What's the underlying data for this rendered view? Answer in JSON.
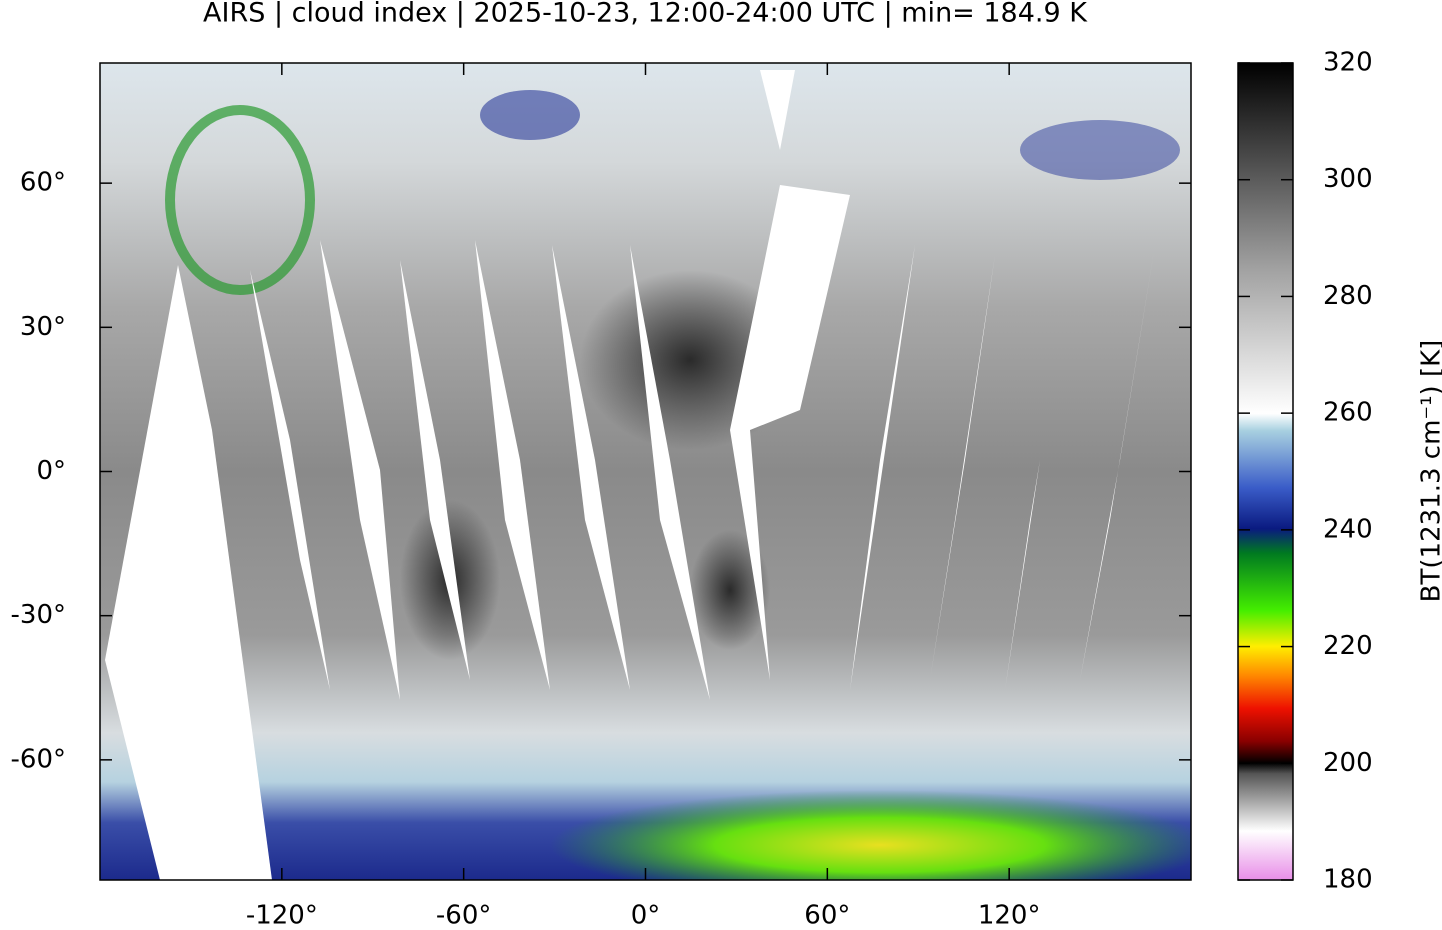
{
  "chart_data": {
    "type": "map",
    "title": "AIRS | cloud index | 2025-10-23, 12:00-24:00 UTC | min= 184.9 K",
    "xlim": [
      -180,
      180
    ],
    "ylim": [
      -85,
      85
    ],
    "xticks": [
      {
        "value": -120,
        "label": "-120°"
      },
      {
        "value": -60,
        "label": "-60°"
      },
      {
        "value": 0,
        "label": "0°"
      },
      {
        "value": 60,
        "label": "60°"
      },
      {
        "value": 120,
        "label": "120°"
      }
    ],
    "yticks": [
      {
        "value": -60,
        "label": "-60°"
      },
      {
        "value": -30,
        "label": "-30°"
      },
      {
        "value": 0,
        "label": "0°"
      },
      {
        "value": 30,
        "label": "30°"
      },
      {
        "value": 60,
        "label": "60°"
      }
    ],
    "colorbar": {
      "label": "BT(1231.3 cm⁻¹) [K]",
      "clim": [
        180,
        320
      ],
      "ticks": [
        180,
        200,
        220,
        240,
        260,
        280,
        300,
        320
      ]
    }
  }
}
